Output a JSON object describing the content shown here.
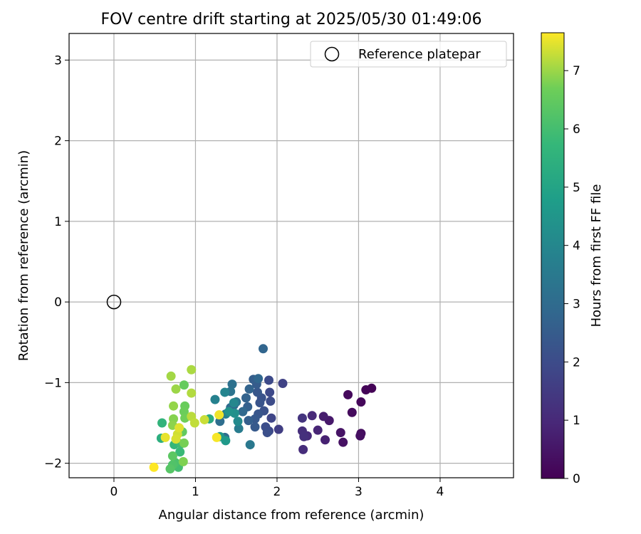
{
  "chart_data": {
    "type": "scatter",
    "title": "FOV centre drift starting at 2025/05/30 01:49:06",
    "xlabel": "Angular distance from reference (arcmin)",
    "ylabel": "Rotation from reference (arcmin)",
    "xlim": [
      -0.55,
      4.9
    ],
    "ylim": [
      -2.18,
      3.33
    ],
    "xticks": [
      0,
      1,
      2,
      3,
      4
    ],
    "xtick_labels": [
      "0",
      "1",
      "2",
      "3",
      "4"
    ],
    "yticks": [
      -2,
      -1,
      0,
      1,
      2,
      3
    ],
    "ytick_labels": [
      "−2",
      "−1",
      "0",
      "1",
      "2",
      "3"
    ],
    "grid": true,
    "legend": {
      "placement": "top-right",
      "label": "Reference platepar"
    },
    "reference_point": {
      "x": 0,
      "y": 0,
      "marker": "open-circle"
    },
    "colorbar": {
      "label": "Hours from first FF file",
      "colormap": "viridis",
      "range": [
        0,
        7.65
      ],
      "ticks": [
        0,
        1,
        2,
        3,
        4,
        5,
        6,
        7
      ],
      "tick_labels": [
        "0",
        "1",
        "2",
        "3",
        "4",
        "5",
        "6",
        "7"
      ]
    },
    "points": [
      {
        "x": 3.16,
        "y": -1.07,
        "t": 0.05
      },
      {
        "x": 3.09,
        "y": -1.09,
        "t": 0.1
      },
      {
        "x": 3.03,
        "y": -1.24,
        "t": 0.15
      },
      {
        "x": 2.87,
        "y": -1.15,
        "t": 0.2
      },
      {
        "x": 2.92,
        "y": -1.37,
        "t": 0.25
      },
      {
        "x": 3.03,
        "y": -1.63,
        "t": 0.3
      },
      {
        "x": 3.02,
        "y": -1.66,
        "t": 0.35
      },
      {
        "x": 2.81,
        "y": -1.74,
        "t": 0.4
      },
      {
        "x": 2.78,
        "y": -1.62,
        "t": 0.45
      },
      {
        "x": 2.64,
        "y": -1.47,
        "t": 0.6
      },
      {
        "x": 2.57,
        "y": -1.42,
        "t": 0.7
      },
      {
        "x": 2.59,
        "y": -1.71,
        "t": 0.8
      },
      {
        "x": 2.5,
        "y": -1.59,
        "t": 0.9
      },
      {
        "x": 2.43,
        "y": -1.41,
        "t": 1.0
      },
      {
        "x": 2.37,
        "y": -1.66,
        "t": 1.05
      },
      {
        "x": 2.32,
        "y": -1.83,
        "t": 1.1
      },
      {
        "x": 2.31,
        "y": -1.6,
        "t": 1.15
      },
      {
        "x": 2.33,
        "y": -1.67,
        "t": 1.2
      },
      {
        "x": 2.31,
        "y": -1.44,
        "t": 1.3
      },
      {
        "x": 2.02,
        "y": -1.58,
        "t": 1.6
      },
      {
        "x": 2.07,
        "y": -1.01,
        "t": 1.7
      },
      {
        "x": 1.93,
        "y": -1.44,
        "t": 1.8
      },
      {
        "x": 1.9,
        "y": -1.6,
        "t": 1.85
      },
      {
        "x": 1.91,
        "y": -1.12,
        "t": 1.9
      },
      {
        "x": 1.9,
        "y": -0.97,
        "t": 1.95
      },
      {
        "x": 1.92,
        "y": -1.23,
        "t": 2.0
      },
      {
        "x": 1.86,
        "y": -1.55,
        "t": 2.05
      },
      {
        "x": 1.88,
        "y": -1.62,
        "t": 2.1
      },
      {
        "x": 1.84,
        "y": -1.35,
        "t": 2.15
      },
      {
        "x": 1.81,
        "y": -1.19,
        "t": 2.2
      },
      {
        "x": 1.79,
        "y": -1.25,
        "t": 2.25
      },
      {
        "x": 1.77,
        "y": -1.39,
        "t": 2.3
      },
      {
        "x": 1.76,
        "y": -1.12,
        "t": 2.35
      },
      {
        "x": 1.73,
        "y": -1.45,
        "t": 2.4
      },
      {
        "x": 1.73,
        "y": -1.55,
        "t": 2.45
      },
      {
        "x": 1.75,
        "y": -1.02,
        "t": 2.5
      },
      {
        "x": 1.71,
        "y": -0.96,
        "t": 2.55
      },
      {
        "x": 1.65,
        "y": -1.47,
        "t": 2.6
      },
      {
        "x": 1.64,
        "y": -1.3,
        "t": 2.65
      },
      {
        "x": 1.62,
        "y": -1.19,
        "t": 2.7
      },
      {
        "x": 1.66,
        "y": -1.08,
        "t": 2.75
      },
      {
        "x": 1.83,
        "y": -0.58,
        "t": 2.8
      },
      {
        "x": 1.77,
        "y": -0.95,
        "t": 2.85
      },
      {
        "x": 1.58,
        "y": -1.36,
        "t": 2.9
      },
      {
        "x": 1.47,
        "y": -1.28,
        "t": 2.95
      },
      {
        "x": 1.43,
        "y": -1.31,
        "t": 3.0
      },
      {
        "x": 1.36,
        "y": -1.68,
        "t": 3.05
      },
      {
        "x": 1.3,
        "y": -1.48,
        "t": 3.1
      },
      {
        "x": 1.45,
        "y": -1.02,
        "t": 3.2
      },
      {
        "x": 1.43,
        "y": -1.11,
        "t": 3.3
      },
      {
        "x": 1.5,
        "y": -1.24,
        "t": 3.4
      },
      {
        "x": 1.67,
        "y": -1.77,
        "t": 3.45
      },
      {
        "x": 1.53,
        "y": -1.57,
        "t": 3.6
      },
      {
        "x": 1.37,
        "y": -1.39,
        "t": 3.7
      },
      {
        "x": 1.24,
        "y": -1.21,
        "t": 3.8
      },
      {
        "x": 1.36,
        "y": -1.12,
        "t": 3.9
      },
      {
        "x": 1.47,
        "y": -1.25,
        "t": 4.0
      },
      {
        "x": 1.52,
        "y": -1.48,
        "t": 4.1
      },
      {
        "x": 1.48,
        "y": -1.38,
        "t": 4.3
      },
      {
        "x": 1.41,
        "y": -1.36,
        "t": 4.4
      },
      {
        "x": 1.3,
        "y": -1.67,
        "t": 4.5
      },
      {
        "x": 1.37,
        "y": -1.72,
        "t": 4.6
      },
      {
        "x": 1.17,
        "y": -1.45,
        "t": 5.2
      },
      {
        "x": 0.58,
        "y": -1.69,
        "t": 5.4
      },
      {
        "x": 0.59,
        "y": -1.5,
        "t": 5.6
      },
      {
        "x": 0.74,
        "y": -1.77,
        "t": 5.7
      },
      {
        "x": 0.81,
        "y": -1.86,
        "t": 5.8
      },
      {
        "x": 0.82,
        "y": -1.76,
        "t": 5.9
      },
      {
        "x": 0.79,
        "y": -2.05,
        "t": 6.0
      },
      {
        "x": 0.75,
        "y": -1.99,
        "t": 6.1
      },
      {
        "x": 0.72,
        "y": -2.02,
        "t": 6.2
      },
      {
        "x": 0.69,
        "y": -2.07,
        "t": 6.3
      },
      {
        "x": 0.72,
        "y": -1.91,
        "t": 6.4
      },
      {
        "x": 0.84,
        "y": -1.61,
        "t": 6.5
      },
      {
        "x": 0.86,
        "y": -1.03,
        "t": 6.55
      },
      {
        "x": 0.87,
        "y": -1.29,
        "t": 6.6
      },
      {
        "x": 0.86,
        "y": -1.36,
        "t": 6.65
      },
      {
        "x": 0.87,
        "y": -1.44,
        "t": 6.7
      },
      {
        "x": 0.86,
        "y": -1.75,
        "t": 6.75
      },
      {
        "x": 0.85,
        "y": -1.98,
        "t": 6.8
      },
      {
        "x": 0.73,
        "y": -1.45,
        "t": 6.85
      },
      {
        "x": 0.72,
        "y": -1.53,
        "t": 6.9
      },
      {
        "x": 0.73,
        "y": -1.29,
        "t": 6.95
      },
      {
        "x": 0.76,
        "y": -1.08,
        "t": 7.0
      },
      {
        "x": 0.7,
        "y": -0.92,
        "t": 7.05
      },
      {
        "x": 0.95,
        "y": -0.84,
        "t": 7.1
      },
      {
        "x": 0.95,
        "y": -1.13,
        "t": 7.15
      },
      {
        "x": 0.95,
        "y": -1.42,
        "t": 7.2
      },
      {
        "x": 0.99,
        "y": -1.5,
        "t": 7.25
      },
      {
        "x": 1.11,
        "y": -1.46,
        "t": 7.3
      },
      {
        "x": 0.78,
        "y": -1.64,
        "t": 7.35
      },
      {
        "x": 0.76,
        "y": -1.7,
        "t": 7.4
      },
      {
        "x": 0.8,
        "y": -1.56,
        "t": 7.45
      },
      {
        "x": 0.63,
        "y": -1.68,
        "t": 7.5
      },
      {
        "x": 1.29,
        "y": -1.4,
        "t": 7.55
      },
      {
        "x": 1.26,
        "y": -1.68,
        "t": 7.6
      },
      {
        "x": 0.49,
        "y": -2.05,
        "t": 7.65
      }
    ]
  }
}
